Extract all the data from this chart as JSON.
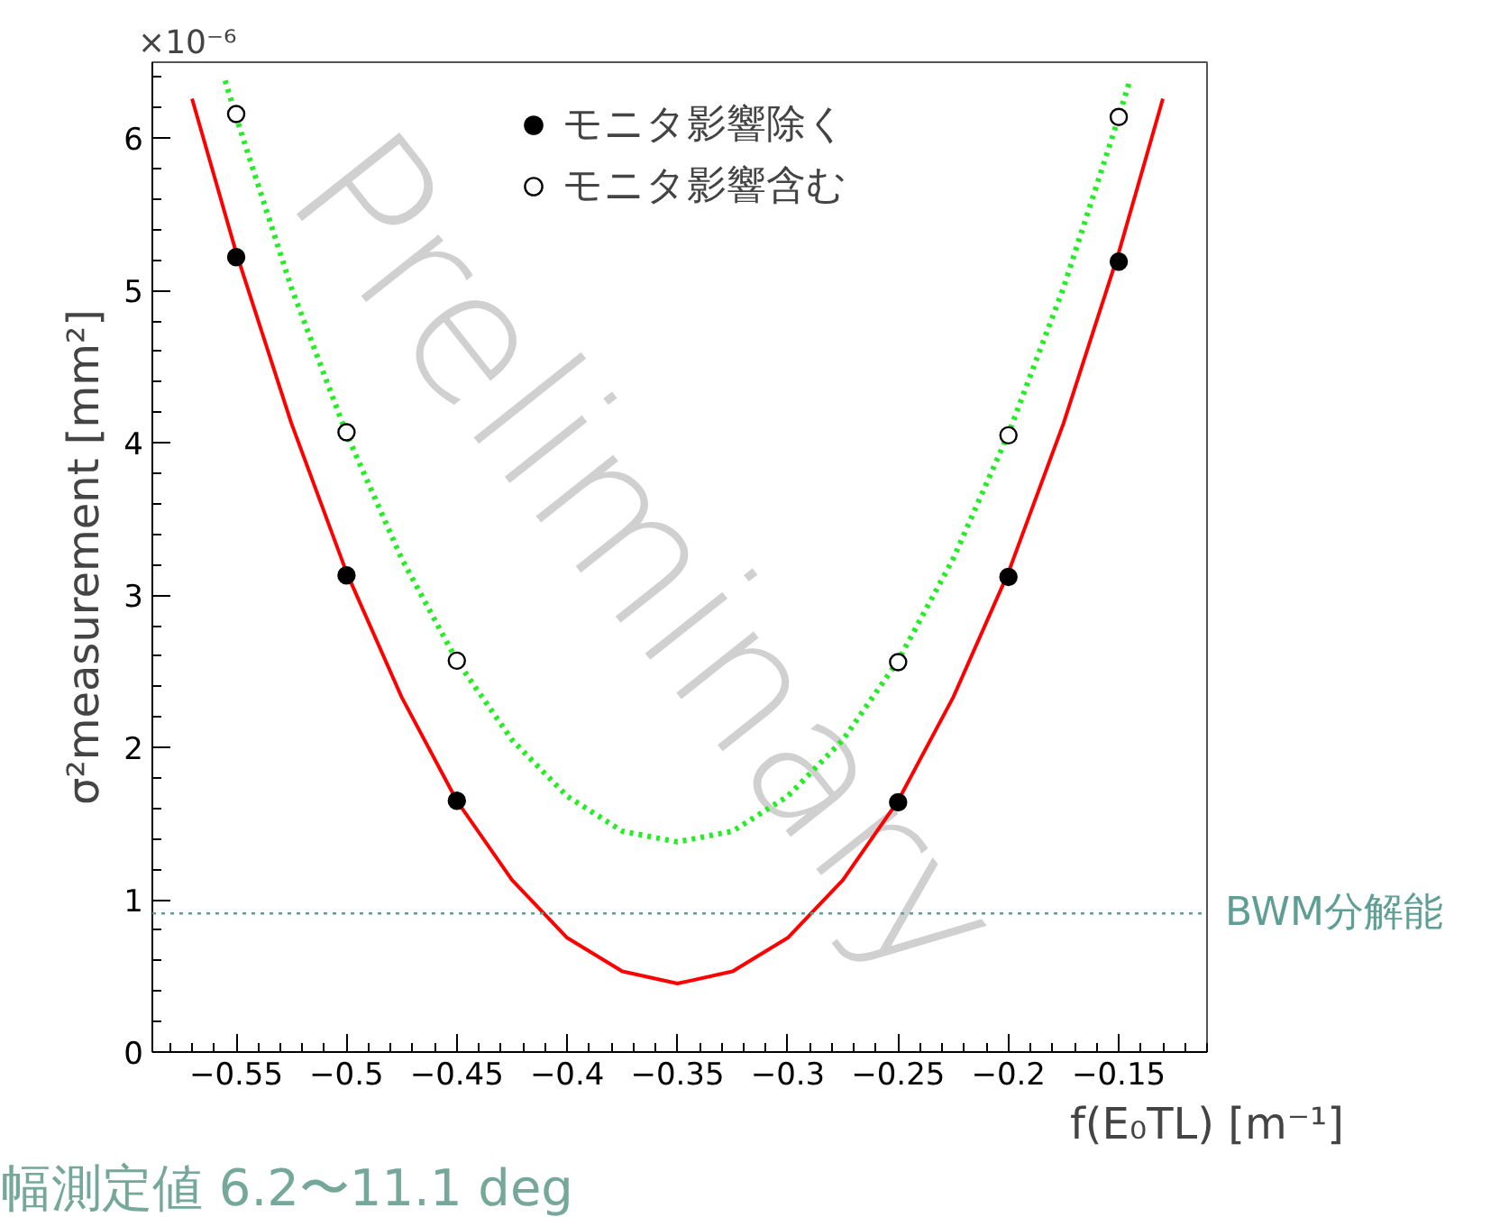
{
  "chart_data": {
    "type": "scatter",
    "xlabel": "f(E₀TL) [m⁻¹]",
    "ylabel": "σ²measurement [mm²]",
    "xlim": [
      -0.588,
      -0.11
    ],
    "ylim": [
      0,
      6.5
    ],
    "xticks": [
      {
        "value": -0.55,
        "label": "−0.55"
      },
      {
        "value": -0.5,
        "label": "−0.5"
      },
      {
        "value": -0.45,
        "label": "−0.45"
      },
      {
        "value": -0.4,
        "label": "−0.4"
      },
      {
        "value": -0.35,
        "label": "−0.35"
      },
      {
        "value": -0.3,
        "label": "−0.3"
      },
      {
        "value": -0.25,
        "label": "−0.25"
      },
      {
        "value": -0.2,
        "label": "−0.2"
      },
      {
        "value": -0.15,
        "label": "−0.15"
      }
    ],
    "yticks": [
      0,
      1,
      2,
      3,
      4,
      5,
      6
    ],
    "grid": false,
    "legend": "top",
    "series": [
      {
        "name": "モニタ影響除く",
        "marker": "circle",
        "color": "#000000",
        "x": [
          -0.55,
          -0.5,
          -0.45,
          -0.25,
          -0.2,
          -0.15
        ],
        "values": [
          5.22,
          3.13,
          1.65,
          1.64,
          3.12,
          5.19
        ]
      },
      {
        "name": "モニタ影響含む",
        "marker": "circle_open",
        "color": "#000000",
        "x": [
          -0.55,
          -0.5,
          -0.45,
          -0.25,
          -0.2,
          -0.15
        ],
        "values": [
          6.16,
          4.07,
          2.57,
          2.56,
          4.05,
          6.14
        ]
      },
      {
        "type": "line",
        "line_style": "solid",
        "color": "#ff0000",
        "x": [
          -0.57,
          -0.55,
          -0.525,
          -0.5,
          -0.475,
          -0.45,
          -0.425,
          -0.4,
          -0.375,
          -0.35,
          -0.325,
          -0.3,
          -0.275,
          -0.25,
          -0.225,
          -0.2,
          -0.175,
          -0.15,
          -0.13
        ],
        "values": [
          6.26,
          5.25,
          4.13,
          3.15,
          2.33,
          1.65,
          1.13,
          0.75,
          0.53,
          0.45,
          0.53,
          0.75,
          1.13,
          1.65,
          2.33,
          3.15,
          4.13,
          5.25,
          6.26
        ]
      },
      {
        "type": "line",
        "line_style": "dotted",
        "color": "#22ee22",
        "x": [
          -0.555,
          -0.55,
          -0.525,
          -0.5,
          -0.475,
          -0.45,
          -0.425,
          -0.4,
          -0.375,
          -0.35,
          -0.325,
          -0.3,
          -0.275,
          -0.25,
          -0.225,
          -0.2,
          -0.175,
          -0.15,
          -0.145
        ],
        "values": [
          6.38,
          6.14,
          5.02,
          4.06,
          3.24,
          2.57,
          2.05,
          1.68,
          1.45,
          1.38,
          1.45,
          1.68,
          2.05,
          2.57,
          3.24,
          4.06,
          5.02,
          6.14,
          6.38
        ]
      }
    ],
    "ref_lines": [
      {
        "axis": "y",
        "value": 0.91,
        "label": "BWM分解能",
        "color": "#5f9e94",
        "line_style": "dotted"
      }
    ],
    "annotations": [
      "×10⁻⁶",
      "Preliminary",
      "幅測定値 6.2〜11.1 deg"
    ]
  }
}
